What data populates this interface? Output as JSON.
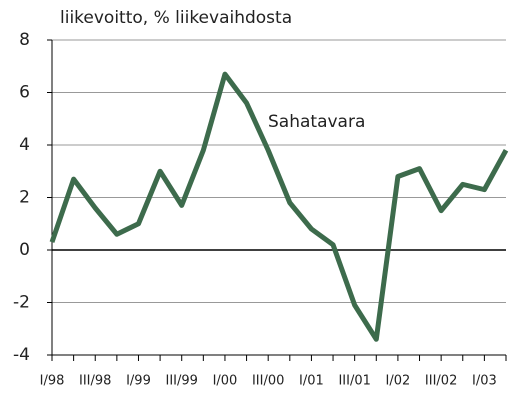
{
  "chart_data": {
    "type": "line",
    "title": "liikevoitto, % liikevaihdosta",
    "annotation": "Sahatavara",
    "categories": [
      "I/98",
      null,
      "III/98",
      null,
      "I/99",
      null,
      "III/99",
      null,
      "I/00",
      null,
      "III/00",
      null,
      "I/01",
      null,
      "III/01",
      null,
      "I/02",
      null,
      "III/02",
      null,
      "I/03",
      null
    ],
    "series": [
      {
        "name": "Sahatavara",
        "color": "#3d6b4c",
        "values": [
          0.3,
          2.7,
          1.6,
          0.6,
          1.0,
          3.0,
          1.7,
          3.8,
          6.7,
          5.6,
          3.8,
          1.8,
          0.8,
          0.2,
          -2.1,
          -3.4,
          2.8,
          3.1,
          1.5,
          2.5,
          2.3,
          3.8
        ]
      }
    ],
    "ylim": [
      -4,
      8
    ],
    "yticks": [
      {
        "value": -4,
        "label": "-4"
      },
      {
        "value": -2,
        "label": "-2"
      },
      0,
      2,
      4,
      6,
      8
    ],
    "grid": true
  }
}
